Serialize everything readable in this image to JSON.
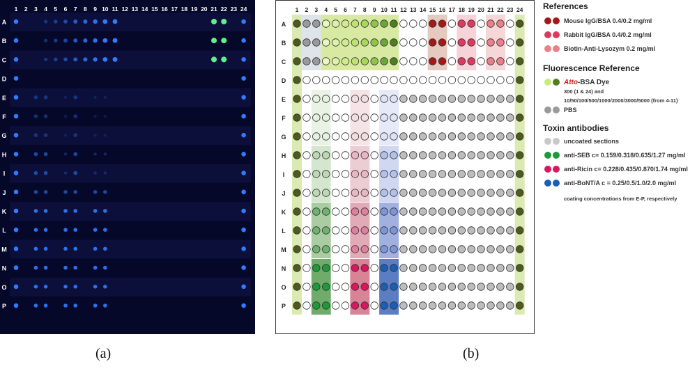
{
  "columns": [
    "1",
    "2",
    "3",
    "4",
    "5",
    "6",
    "7",
    "8",
    "9",
    "10",
    "11",
    "12",
    "13",
    "14",
    "15",
    "16",
    "17",
    "18",
    "19",
    "20",
    "21",
    "22",
    "23",
    "24"
  ],
  "rows": [
    "A",
    "B",
    "C",
    "D",
    "E",
    "F",
    "G",
    "H",
    "I",
    "J",
    "K",
    "L",
    "M",
    "N",
    "O",
    "P"
  ],
  "captions": {
    "a": "(a)",
    "b": "(b)"
  },
  "colors": {
    "scan_background": "#06082a",
    "scan_spot": "#2f7dff",
    "scan_hot_spot": "#5ff08a",
    "empty_well": "#ffffff",
    "dark_ref": "#4f5a1c",
    "mouse": "#a31919",
    "rabbit": "#dc3a5e",
    "biotin": "#eb7f8a",
    "atto_light": "#c8ec7a",
    "atto_dark": "#4e7e1e",
    "pbs": "#9a9a9a",
    "uncoated": "#bdbdbd",
    "seb": "#1e9a3a",
    "ricin": "#d8175e",
    "bont": "#1a5fb4"
  },
  "legend": {
    "references_title": "References",
    "mouse": "Mouse IgG/BSA 0.4/0.2 mg/ml",
    "rabbit": "Rabbit IgG/BSA 0.4/0.2 mg/ml",
    "biotin": "Biotin-Anti-Lysozym 0.2 mg/ml",
    "fluor_title": "Fluorescence Reference",
    "atto_italic": "Atto",
    "atto_rest": "-BSA Dye",
    "atto_note1": "300 (1 & 24) and",
    "atto_note2": "10/50/100/500/1000/2000/3000/5000 (from 4-11)",
    "pbs": "PBS",
    "toxin_title": "Toxin antibodies",
    "uncoated": "uncoated sections",
    "seb": "anti-SEB c= 0.159/0.318/0.635/1.27 mg/ml",
    "ricin": "anti-Ricin c= 0.228/0.435/0.870/1.74 mg/ml",
    "bont": "anti-BoNT/A c = 0.25/0.5/1.0/2.0 mg/ml",
    "coating_note": "coating concentrations from E-P, respectively"
  }
}
